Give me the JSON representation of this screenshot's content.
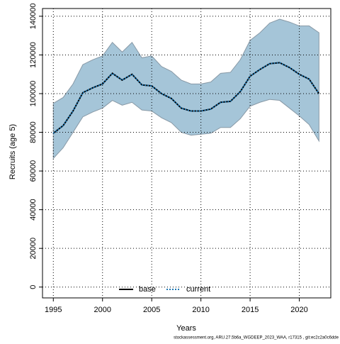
{
  "chart_data": {
    "type": "line",
    "y_label": "Recruits (age 5)",
    "x_label": "Years",
    "footer": "stockassessment.org, ARU.27.5b6a_WGDEEP_2023_WAA, r17315 , git:ec2c2a0c6dde",
    "x": [
      1995,
      1996,
      1997,
      1998,
      1999,
      2000,
      2001,
      2002,
      2003,
      2004,
      2005,
      2006,
      2007,
      2008,
      2009,
      2010,
      2011,
      2012,
      2013,
      2014,
      2015,
      2016,
      2017,
      2018,
      2019,
      2020,
      2021,
      2022
    ],
    "band": {
      "color": "#a5c5d8",
      "upper": [
        95000,
        98000,
        105000,
        115000,
        117500,
        119500,
        126500,
        121500,
        126500,
        118500,
        119500,
        114000,
        111500,
        107000,
        105000,
        105000,
        106000,
        110500,
        111000,
        117500,
        127500,
        131500,
        136500,
        138500,
        137000,
        135000,
        135000,
        131500
      ],
      "lower": [
        66500,
        72000,
        80000,
        88000,
        90500,
        92500,
        96500,
        94000,
        95500,
        91500,
        91000,
        87500,
        85000,
        80000,
        78500,
        79000,
        79500,
        82500,
        82500,
        87000,
        93500,
        95500,
        97000,
        96500,
        92500,
        88500,
        84000,
        75500
      ]
    },
    "series": [
      {
        "name": "base",
        "color": "#000000",
        "values": [
          79500,
          83500,
          91000,
          100500,
          103000,
          105000,
          110500,
          107000,
          110000,
          104500,
          104000,
          100000,
          97500,
          92500,
          91000,
          91000,
          92000,
          95500,
          96000,
          101000,
          109000,
          112500,
          115500,
          116000,
          113500,
          110000,
          107500,
          100000
        ]
      },
      {
        "name": "current",
        "color": "#1f78b4",
        "values": [
          79500,
          83500,
          91000,
          100500,
          103000,
          105000,
          110500,
          107000,
          110000,
          104500,
          104000,
          100000,
          97500,
          92500,
          91000,
          91000,
          92000,
          95500,
          96000,
          101000,
          109000,
          112500,
          115500,
          116000,
          113500,
          110000,
          107500,
          100000
        ]
      }
    ],
    "xlim": [
      1993.9,
      2023.2
    ],
    "xticks": [
      1995,
      2000,
      2005,
      2010,
      2015,
      2020
    ],
    "ylim": [
      -5600,
      144000
    ],
    "yticks": [
      0,
      20000,
      40000,
      60000,
      80000,
      100000,
      120000,
      140000
    ],
    "grid": true
  }
}
